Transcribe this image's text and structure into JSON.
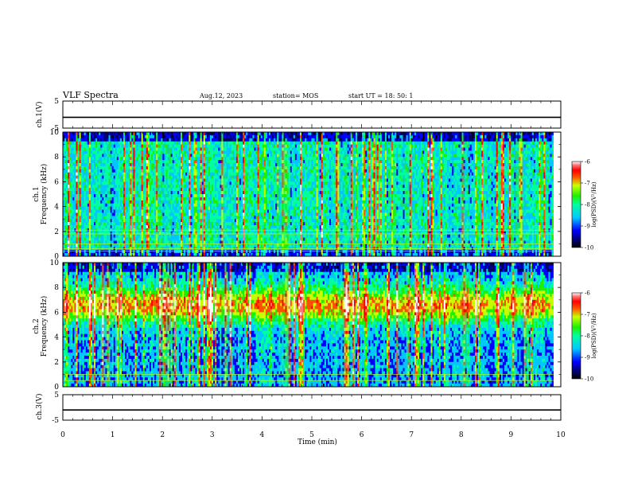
{
  "header": {
    "title": "VLF Spectra",
    "date": "Aug.12, 2023",
    "station": "station= MOS",
    "start_ut": "start  UT  =   18: 50: 1"
  },
  "chart_data": [
    {
      "type": "line",
      "panel": "ch1-voltage",
      "ylabel": "ch.1(V)",
      "ylim": [
        -5,
        5
      ],
      "y_ticks": [
        "5",
        "-5"
      ],
      "x": [
        0,
        10
      ],
      "values": [
        -1.0,
        -1.0
      ]
    },
    {
      "type": "heatmap",
      "panel": "ch1-spectrogram",
      "ylabel": [
        "ch.1",
        "Frequency (kHz)"
      ],
      "ylim": [
        0,
        10
      ],
      "xlim": [
        0,
        9.85
      ],
      "y_ticks": [
        "0",
        "2",
        "4",
        "6",
        "8",
        "10"
      ],
      "colorbar": {
        "label": "log(PSD)(V²/Hz)",
        "range": [
          -10,
          -6
        ],
        "ticks": [
          "-6",
          "-7",
          "-8",
          "-9",
          "-10"
        ]
      },
      "description": "broadband impulsive emissions (sferics) across 0-10 kHz over 0-9.85 min; background ~ -9 to -8.5, bursts up to -6.5; horizontal lines near 0.5 kHz and 1-2 kHz"
    },
    {
      "type": "heatmap",
      "panel": "ch2-spectrogram",
      "ylabel": [
        "ch.2",
        "Frequency (kHz)"
      ],
      "ylim": [
        0,
        10
      ],
      "xlim": [
        0,
        9.85
      ],
      "y_ticks": [
        "0",
        "2",
        "4",
        "6",
        "8",
        "10"
      ],
      "colorbar": {
        "label": "log(PSD)(V²/Hz)",
        "range": [
          -10,
          -6
        ],
        "ticks": [
          "-6",
          "-7",
          "-8",
          "-9",
          "-10"
        ]
      },
      "description": "enhanced band between 5 and 8 kHz (log PSD ~ -8 to -6.5) with broadband vertical bursts across the full record"
    },
    {
      "type": "line",
      "panel": "ch3-voltage",
      "ylabel": "ch.3(V)",
      "ylim": [
        -5,
        5
      ],
      "y_ticks": [
        "5",
        "-5"
      ],
      "x": [
        0,
        10
      ],
      "values": [
        -1.0,
        -1.0
      ]
    }
  ],
  "x_axis": {
    "label": "Time  (min)",
    "ticks": [
      "0",
      "1",
      "2",
      "3",
      "4",
      "5",
      "6",
      "7",
      "8",
      "9",
      "10"
    ]
  },
  "colors": {
    "colormap": [
      "#000000",
      "#000066",
      "#0000ff",
      "#00c8ff",
      "#00ff9f",
      "#1ff000",
      "#c8ff00",
      "#ff5000",
      "#ff0000",
      "#ff7878",
      "#ffffff"
    ]
  }
}
